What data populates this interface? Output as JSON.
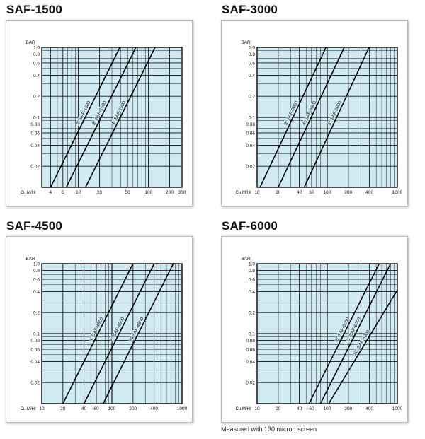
{
  "colors": {
    "plot_bg": "#cfeaf2",
    "grid": "#1a1a1a",
    "line": "#000000",
    "text": "#111111"
  },
  "footer": {
    "note": "Measured with 130 micron screen"
  },
  "chart_data": [
    {
      "type": "line",
      "title": "SAF-1500",
      "ylabel": "BAR",
      "xlabel": "Cu.M/Hr",
      "xscale": "log",
      "yscale": "log",
      "xlim": [
        3,
        300
      ],
      "ylim": [
        0.01,
        1.0
      ],
      "xticks": [
        {
          "value": 4,
          "label": "4"
        },
        {
          "value": 6,
          "label": "6"
        },
        {
          "value": 10,
          "label": "10"
        },
        {
          "value": 20,
          "label": "20"
        },
        {
          "value": 50,
          "label": "50"
        },
        {
          "value": 100,
          "label": "100"
        },
        {
          "value": 200,
          "label": "200"
        },
        {
          "value": 300,
          "label": "300"
        }
      ],
      "yticks": [
        {
          "value": 1.0,
          "label": "1.0"
        },
        {
          "value": 0.8,
          "label": "0.8"
        },
        {
          "value": 0.6,
          "label": "0.6"
        },
        {
          "value": 0.4,
          "label": "0.4"
        },
        {
          "value": 0.2,
          "label": "0.2"
        },
        {
          "value": 0.1,
          "label": "0.1"
        },
        {
          "value": 0.08,
          "label": "0.08"
        },
        {
          "value": 0.06,
          "label": "0.06"
        },
        {
          "value": 0.04,
          "label": "0.04"
        },
        {
          "value": 0.02,
          "label": "0.02"
        }
      ],
      "series": [
        {
          "name": "2\" SAF-1500",
          "x": [
            4,
            39
          ],
          "y": [
            0.01,
            1.0
          ]
        },
        {
          "name": "3\" SAF-1500",
          "x": [
            6.7,
            66
          ],
          "y": [
            0.01,
            1.0
          ]
        },
        {
          "name": "4\" SAF-1500",
          "x": [
            12.6,
            124
          ],
          "y": [
            0.01,
            1.0
          ]
        }
      ]
    },
    {
      "type": "line",
      "title": "SAF-3000",
      "ylabel": "BAR",
      "xlabel": "Cu.M/Hr",
      "xscale": "log",
      "yscale": "log",
      "xlim": [
        10,
        1000
      ],
      "ylim": [
        0.01,
        1.0
      ],
      "xticks": [
        {
          "value": 10,
          "label": "10"
        },
        {
          "value": 20,
          "label": "20"
        },
        {
          "value": 40,
          "label": "40"
        },
        {
          "value": 60,
          "label": "60"
        },
        {
          "value": 100,
          "label": "100"
        },
        {
          "value": 200,
          "label": "200"
        },
        {
          "value": 400,
          "label": "400"
        },
        {
          "value": 1000,
          "label": "1000"
        }
      ],
      "yticks": [
        {
          "value": 1.0,
          "label": "1.0"
        },
        {
          "value": 0.8,
          "label": "0.8"
        },
        {
          "value": 0.6,
          "label": "0.6"
        },
        {
          "value": 0.4,
          "label": "0.4"
        },
        {
          "value": 0.2,
          "label": "0.2"
        },
        {
          "value": 0.1,
          "label": "0.1"
        },
        {
          "value": 0.08,
          "label": "0.08"
        },
        {
          "value": 0.06,
          "label": "0.06"
        },
        {
          "value": 0.04,
          "label": "0.04"
        },
        {
          "value": 0.02,
          "label": "0.02"
        }
      ],
      "series": [
        {
          "name": "3\" SAF-3000",
          "x": [
            11,
            96
          ],
          "y": [
            0.01,
            1.0
          ]
        },
        {
          "name": "4\" SAF-3000",
          "x": [
            20,
            175
          ],
          "y": [
            0.01,
            1.0
          ]
        },
        {
          "name": "6\" SAF-3000",
          "x": [
            47,
            395
          ],
          "y": [
            0.01,
            1.0
          ]
        }
      ]
    },
    {
      "type": "line",
      "title": "SAF-4500",
      "ylabel": "BAR",
      "xlabel": "Cu.M/Hr",
      "xscale": "log",
      "yscale": "log",
      "xlim": [
        10,
        1000
      ],
      "ylim": [
        0.01,
        1.0
      ],
      "xticks": [
        {
          "value": 10,
          "label": "10"
        },
        {
          "value": 20,
          "label": "20"
        },
        {
          "value": 40,
          "label": "40"
        },
        {
          "value": 60,
          "label": "60"
        },
        {
          "value": 100,
          "label": "100"
        },
        {
          "value": 200,
          "label": "200"
        },
        {
          "value": 400,
          "label": "400"
        },
        {
          "value": 1000,
          "label": "1000"
        }
      ],
      "yticks": [
        {
          "value": 1.0,
          "label": "1.0"
        },
        {
          "value": 0.8,
          "label": "0.8"
        },
        {
          "value": 0.6,
          "label": "0.6"
        },
        {
          "value": 0.4,
          "label": "0.4"
        },
        {
          "value": 0.2,
          "label": "0.2"
        },
        {
          "value": 0.1,
          "label": "0.1"
        },
        {
          "value": 0.08,
          "label": "0.08"
        },
        {
          "value": 0.06,
          "label": "0.06"
        },
        {
          "value": 0.04,
          "label": "0.04"
        },
        {
          "value": 0.02,
          "label": "0.02"
        }
      ],
      "series": [
        {
          "name": "4\" SAF-4500",
          "x": [
            20,
            200
          ],
          "y": [
            0.01,
            1.0
          ]
        },
        {
          "name": "6\" SAF-4500",
          "x": [
            40,
            400
          ],
          "y": [
            0.01,
            1.0
          ]
        },
        {
          "name": "8\" SAF-4500",
          "x": [
            75,
            750
          ],
          "y": [
            0.01,
            1.0
          ]
        }
      ]
    },
    {
      "type": "line",
      "title": "SAF-6000",
      "ylabel": "BAR",
      "xlabel": "Cu.M/Hr",
      "xscale": "log",
      "yscale": "log",
      "xlim": [
        10,
        1000
      ],
      "ylim": [
        0.01,
        1.0
      ],
      "xticks": [
        {
          "value": 10,
          "label": "10"
        },
        {
          "value": 20,
          "label": "20"
        },
        {
          "value": 40,
          "label": "40"
        },
        {
          "value": 60,
          "label": "60"
        },
        {
          "value": 100,
          "label": "100"
        },
        {
          "value": 200,
          "label": "200"
        },
        {
          "value": 400,
          "label": "400"
        },
        {
          "value": 1000,
          "label": "1000"
        }
      ],
      "yticks": [
        {
          "value": 1.0,
          "label": "1.0"
        },
        {
          "value": 0.8,
          "label": "0.8"
        },
        {
          "value": 0.6,
          "label": "0.6"
        },
        {
          "value": 0.4,
          "label": "0.4"
        },
        {
          "value": 0.2,
          "label": "0.2"
        },
        {
          "value": 0.1,
          "label": "0.1"
        },
        {
          "value": 0.08,
          "label": "0.08"
        },
        {
          "value": 0.06,
          "label": "0.06"
        },
        {
          "value": 0.04,
          "label": "0.04"
        },
        {
          "value": 0.02,
          "label": "0.02"
        }
      ],
      "series": [
        {
          "name": "6\" SAF-6000",
          "x": [
            55,
            550
          ],
          "y": [
            0.01,
            1.0
          ]
        },
        {
          "name": "8\" SAF-6000",
          "x": [
            80,
            800
          ],
          "y": [
            0.01,
            1.0
          ]
        },
        {
          "name": "10\" SAF-6000",
          "x": [
            105,
            1000
          ],
          "y": [
            0.01,
            0.42
          ]
        }
      ]
    }
  ]
}
